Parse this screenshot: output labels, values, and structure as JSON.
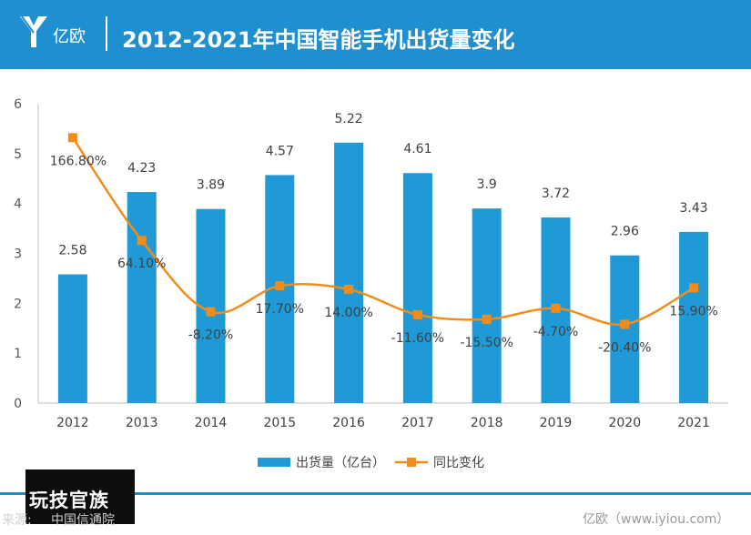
{
  "header": {
    "brand": "亿欧",
    "title": "2012-2021年中国智能手机出货量变化"
  },
  "chart_data": {
    "type": "bar",
    "categories": [
      "2012",
      "2013",
      "2014",
      "2015",
      "2016",
      "2017",
      "2018",
      "2019",
      "2020",
      "2021"
    ],
    "ylim": [
      0,
      6
    ],
    "yticks": [
      0,
      1,
      2,
      3,
      4,
      5,
      6
    ],
    "grid": false,
    "legend_position": "bottom",
    "colors": {
      "bar": "#1f9ad6",
      "line": "#f28c1a"
    },
    "series": [
      {
        "name": "出货量（亿台）",
        "type": "bar",
        "values": [
          2.58,
          4.23,
          3.89,
          4.57,
          5.22,
          4.61,
          3.9,
          3.72,
          2.96,
          3.43
        ],
        "labels": [
          "2.58",
          "4.23",
          "3.89",
          "4.57",
          "5.22",
          "4.61",
          "3.9",
          "3.72",
          "2.96",
          "3.43"
        ]
      },
      {
        "name": "同比变化",
        "type": "line",
        "values": [
          166.8,
          64.1,
          -8.2,
          17.7,
          14.0,
          -11.6,
          -15.5,
          -4.7,
          -20.4,
          15.9
        ],
        "labels": [
          "166.80%",
          "64.10%",
          "-8.20%",
          "17.70%",
          "14.00%",
          "-11.60%",
          "-15.50%",
          "-4.70%",
          "-20.40%",
          "15.90%"
        ],
        "plotted_y": [
          5.32,
          3.26,
          1.83,
          2.35,
          2.28,
          1.77,
          1.68,
          1.9,
          1.58,
          2.31
        ]
      }
    ]
  },
  "footer": {
    "stamp": "玩技官族",
    "source_label": "来源:",
    "source_name": "中国信通院",
    "credit": "亿欧（www.iyiou.com）"
  }
}
